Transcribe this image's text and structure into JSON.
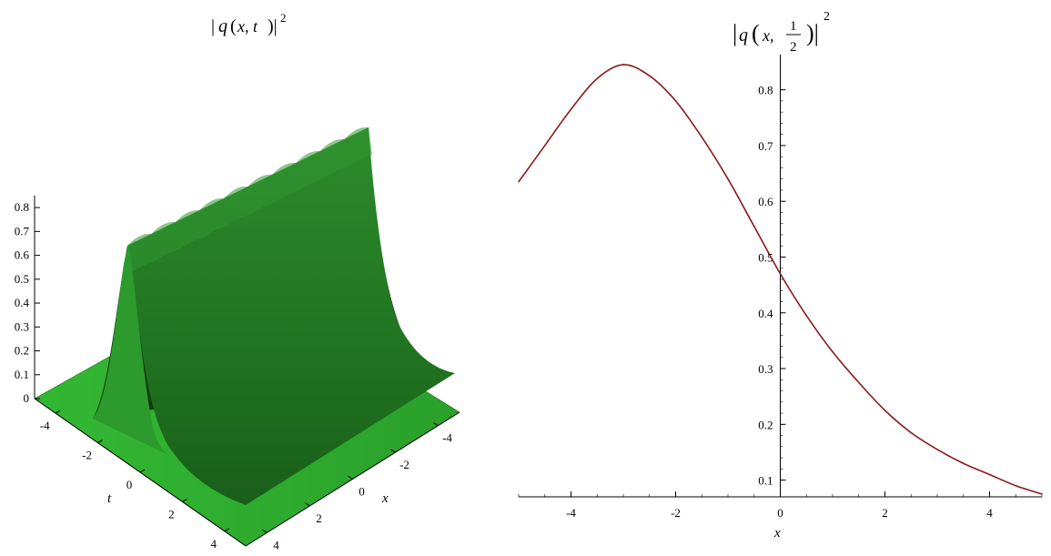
{
  "chart_data": [
    {
      "type": "surface",
      "title_prefix": "q",
      "title_args": "x, t",
      "title_power": "2",
      "xlabel": "x",
      "ylabel": "t",
      "x_ticks": [
        "-4",
        "-2",
        "0",
        "2",
        "4"
      ],
      "t_ticks": [
        "-4",
        "-2",
        "0",
        "2",
        "4"
      ],
      "z_ticks": [
        "0",
        "0.1",
        "0.2",
        "0.3",
        "0.4",
        "0.5",
        "0.6",
        "0.7",
        "0.8"
      ],
      "xlim": [
        -5,
        5
      ],
      "tlim": [
        -5,
        5
      ],
      "zlim": [
        0,
        0.85
      ],
      "surface_color": "#1f7a1f",
      "base_color": "#3cc43c"
    },
    {
      "type": "line",
      "title_prefix": "q",
      "title_args": "x,",
      "title_frac_num": "1",
      "title_frac_den": "2",
      "title_power": "2",
      "xlabel": "x",
      "xlim": [
        -5,
        5
      ],
      "ylim": [
        0.07,
        0.85
      ],
      "x_ticks": [
        "-4",
        "-2",
        "0",
        "2",
        "4"
      ],
      "y_ticks": [
        "0.1",
        "0.2",
        "0.3",
        "0.4",
        "0.5",
        "0.6",
        "0.7",
        "0.8"
      ],
      "line_color": "#8b1a1a",
      "series": [
        {
          "x": [
            -5,
            -4.5,
            -4,
            -3.5,
            -3,
            -2.5,
            -2,
            -1.5,
            -1,
            -0.5,
            0,
            0.5,
            1,
            1.5,
            2,
            2.5,
            3,
            3.5,
            4,
            4.5,
            5
          ],
          "values": [
            0.635,
            0.7,
            0.765,
            0.82,
            0.845,
            0.825,
            0.78,
            0.715,
            0.64,
            0.555,
            0.47,
            0.395,
            0.33,
            0.275,
            0.225,
            0.185,
            0.155,
            0.13,
            0.11,
            0.09,
            0.075
          ]
        }
      ]
    }
  ]
}
